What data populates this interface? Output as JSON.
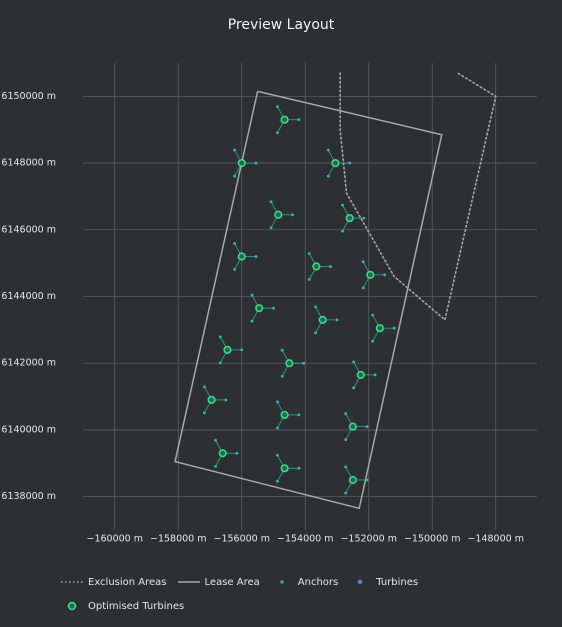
{
  "chart_data": {
    "type": "scatter",
    "title": "Preview Layout",
    "xlabel": "",
    "ylabel": "",
    "xlim": [
      -161000,
      -146700
    ],
    "ylim": [
      6137000,
      6151000
    ],
    "xticks": [
      -160000,
      -158000,
      -156000,
      -154000,
      -152000,
      -150000,
      -148000
    ],
    "xtick_labels": [
      "−160000 m",
      "−158000 m",
      "−156000 m",
      "−154000 m",
      "−152000 m",
      "−150000 m",
      "−148000 m"
    ],
    "yticks": [
      6138000,
      6140000,
      6142000,
      6144000,
      6146000,
      6148000,
      6150000
    ],
    "ytick_labels": [
      "6138000 m",
      "6140000 m",
      "6142000 m",
      "6144000 m",
      "6146000 m",
      "6148000 m",
      "6150000 m"
    ],
    "grid": true,
    "legend_position": "bottom",
    "legend": [
      {
        "name": "Exclusion Areas",
        "style": "dotted-line",
        "color": "#a8a8a8"
      },
      {
        "name": "Lease Area",
        "style": "line",
        "color": "#a8a8a8"
      },
      {
        "name": "Anchors",
        "style": "dot",
        "color": "#2bbfb0"
      },
      {
        "name": "Turbines",
        "style": "dot",
        "color": "#5b7fe8"
      },
      {
        "name": "Optimised Turbines",
        "style": "ring",
        "color": "#3bd98a"
      }
    ],
    "lease_area": [
      [
        -155500,
        6150150
      ],
      [
        -149700,
        6148850
      ],
      [
        -152300,
        6137650
      ],
      [
        -158100,
        6139050
      ],
      [
        -155500,
        6150150
      ]
    ],
    "exclusion_areas": [
      [
        [
          -152900,
          6150700
        ],
        [
          -152900,
          6149000
        ],
        [
          -152700,
          6147100
        ],
        [
          -151200,
          6144600
        ],
        [
          -149600,
          6143300
        ],
        [
          -148000,
          6150000
        ],
        [
          -149200,
          6150700
        ]
      ]
    ],
    "turbines": [
      [
        -154650,
        6149300
      ],
      [
        -156000,
        6148000
      ],
      [
        -153050,
        6148000
      ],
      [
        -154850,
        6146450
      ],
      [
        -152600,
        6146350
      ],
      [
        -156000,
        6145200
      ],
      [
        -153650,
        6144900
      ],
      [
        -151950,
        6144650
      ],
      [
        -155450,
        6143650
      ],
      [
        -153450,
        6143300
      ],
      [
        -151650,
        6143050
      ],
      [
        -156450,
        6142400
      ],
      [
        -154500,
        6142000
      ],
      [
        -152250,
        6141650
      ],
      [
        -156950,
        6140900
      ],
      [
        -154650,
        6140450
      ],
      [
        -152500,
        6140100
      ],
      [
        -156600,
        6139300
      ],
      [
        -154650,
        6138850
      ],
      [
        -152500,
        6138500
      ]
    ],
    "anchor_offsets": [
      [
        450,
        0
      ],
      [
        -225,
        390
      ],
      [
        -225,
        -390
      ]
    ]
  },
  "colors": {
    "background": "#2d2f33",
    "grid": "#5a5d62",
    "lease": "#a8a8a8",
    "exclusion": "#a8a8a8",
    "anchor": "#2bbfb0",
    "mooring": "#2bbfb0",
    "turbine_ring": "#3bd98a",
    "turbine_fill": "#1f6b4b"
  }
}
